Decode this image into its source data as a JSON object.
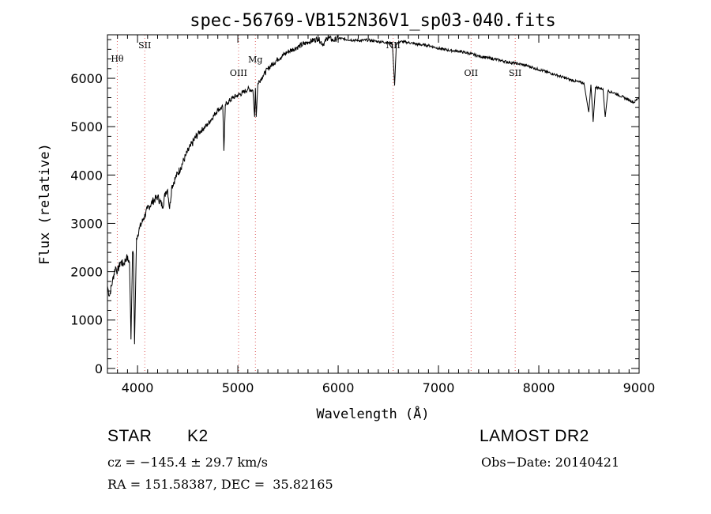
{
  "chart_data": {
    "type": "line",
    "title": "spec-56769-VB152N36V1_sp03-040.fits",
    "xlabel": "Wavelength (Å)",
    "ylabel": "Flux (relative)",
    "xlim": [
      3700,
      9000
    ],
    "ylim": [
      -100,
      6900
    ],
    "xticks": [
      4000,
      5000,
      6000,
      7000,
      8000,
      9000
    ],
    "yticks": [
      0,
      1000,
      2000,
      3000,
      4000,
      5000,
      6000
    ],
    "grid": false,
    "series": [
      {
        "x": [
          3700,
          3720,
          3750,
          3780,
          3800,
          3830,
          3860,
          3890,
          3920,
          3935,
          3950,
          3960,
          3970,
          3990,
          4020,
          4060,
          4100,
          4150,
          4200,
          4250,
          4280,
          4300,
          4320,
          4340,
          4380,
          4430,
          4480,
          4530,
          4600,
          4700,
          4800,
          4850,
          4861,
          4875,
          4900,
          4950,
          5000,
          5050,
          5100,
          5150,
          5167,
          5175,
          5183,
          5200,
          5250,
          5300,
          5400,
          5500,
          5600,
          5700,
          5800,
          5850,
          5900,
          5950,
          6000,
          6100,
          6200,
          6300,
          6400,
          6500,
          6540,
          6563,
          6580,
          6620,
          6700,
          6800,
          6900,
          7000,
          7100,
          7200,
          7300,
          7400,
          7500,
          7600,
          7700,
          7800,
          7900,
          8000,
          8100,
          8200,
          8300,
          8400,
          8450,
          8498,
          8520,
          8542,
          8565,
          8600,
          8640,
          8662,
          8690,
          8750,
          8800,
          8850,
          8900,
          8950,
          9000
        ],
        "values": [
          1700,
          1500,
          1800,
          2100,
          2000,
          2200,
          2150,
          2300,
          2200,
          600,
          2400,
          2350,
          500,
          2700,
          2900,
          3100,
          3300,
          3450,
          3550,
          3350,
          3650,
          3700,
          3300,
          3750,
          3950,
          4150,
          4400,
          4600,
          4850,
          5050,
          5350,
          5400,
          4500,
          5450,
          5500,
          5600,
          5650,
          5700,
          5780,
          5750,
          5200,
          5800,
          5200,
          5900,
          6050,
          6200,
          6400,
          6550,
          6650,
          6750,
          6820,
          6700,
          6850,
          6780,
          6830,
          6800,
          6780,
          6790,
          6760,
          6740,
          6720,
          5850,
          6720,
          6760,
          6740,
          6700,
          6680,
          6620,
          6580,
          6560,
          6520,
          6460,
          6420,
          6380,
          6330,
          6300,
          6250,
          6180,
          6120,
          6050,
          5980,
          5920,
          5900,
          5300,
          5870,
          5100,
          5820,
          5800,
          5780,
          5200,
          5740,
          5700,
          5650,
          5600,
          5550,
          5500,
          5620
        ]
      }
    ],
    "line_markers": [
      {
        "label": "Hθ",
        "x": 3798
      },
      {
        "label": "SII",
        "x": 4072
      },
      {
        "label": "OIII",
        "x": 5007
      },
      {
        "label": "Mg",
        "x": 5175
      },
      {
        "label": "NII",
        "x": 6548
      },
      {
        "label": "OII",
        "x": 7325
      },
      {
        "label": "SII",
        "x": 7765
      }
    ],
    "colors": {
      "line": "#000000",
      "marker": "#e06060"
    }
  },
  "info": {
    "object_type": "STAR",
    "spectral_class": "K2",
    "survey": "LAMOST DR2",
    "cz": "cz = −145.4 ± 29.7 km/s",
    "obs_date": "Obs−Date: 20140421",
    "coords": "RA = 151.58387, DEC =  35.82165"
  }
}
